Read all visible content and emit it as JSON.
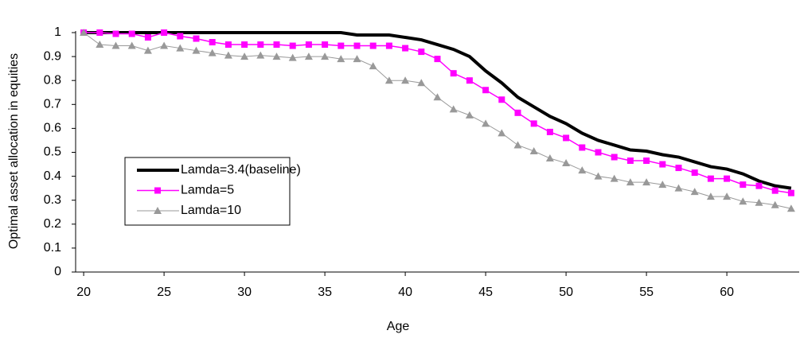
{
  "chart_data": {
    "type": "line",
    "x_label": "Age",
    "y_label": "Optimal asset allocation in equities",
    "x": [
      20,
      21,
      22,
      23,
      24,
      25,
      26,
      27,
      28,
      29,
      30,
      31,
      32,
      33,
      34,
      35,
      36,
      37,
      38,
      39,
      40,
      41,
      42,
      43,
      44,
      45,
      46,
      47,
      48,
      49,
      50,
      51,
      52,
      53,
      54,
      55,
      56,
      57,
      58,
      59,
      60,
      61,
      62,
      63,
      64
    ],
    "xlim": [
      19.5,
      64.5
    ],
    "xticks": [
      20,
      25,
      30,
      35,
      40,
      45,
      50,
      55,
      60
    ],
    "ylim": [
      0,
      1
    ],
    "yticks": [
      0,
      0.1,
      0.2,
      0.3,
      0.4,
      0.5,
      0.6,
      0.7,
      0.8,
      0.9,
      1
    ],
    "legend": "left",
    "series": [
      {
        "name": "Lamda=3.4(baseline)",
        "color": "#000000",
        "marker": "none",
        "line_width": 4,
        "values": [
          1,
          1,
          1,
          1,
          1,
          1,
          1,
          1,
          1,
          1,
          1,
          1,
          1,
          1,
          1,
          1,
          1,
          0.99,
          0.99,
          0.99,
          0.98,
          0.97,
          0.95,
          0.93,
          0.9,
          0.84,
          0.79,
          0.73,
          0.69,
          0.65,
          0.62,
          0.58,
          0.55,
          0.53,
          0.51,
          0.505,
          0.49,
          0.48,
          0.46,
          0.44,
          0.43,
          0.41,
          0.38,
          0.36,
          0.35
        ]
      },
      {
        "name": "Lamda=5",
        "color": "#ff00ff",
        "marker": "square",
        "line_width": 1.5,
        "values": [
          1,
          1,
          0.995,
          0.995,
          0.98,
          1,
          0.985,
          0.975,
          0.96,
          0.95,
          0.95,
          0.95,
          0.95,
          0.945,
          0.95,
          0.95,
          0.945,
          0.945,
          0.945,
          0.945,
          0.935,
          0.92,
          0.89,
          0.83,
          0.8,
          0.76,
          0.72,
          0.665,
          0.62,
          0.585,
          0.56,
          0.52,
          0.5,
          0.48,
          0.465,
          0.465,
          0.45,
          0.435,
          0.415,
          0.39,
          0.39,
          0.365,
          0.36,
          0.34,
          0.33
        ]
      },
      {
        "name": "Lamda=10",
        "color": "#999999",
        "marker": "triangle",
        "line_width": 1,
        "values": [
          1,
          0.95,
          0.945,
          0.945,
          0.925,
          0.945,
          0.935,
          0.925,
          0.915,
          0.905,
          0.9,
          0.905,
          0.9,
          0.895,
          0.9,
          0.9,
          0.89,
          0.89,
          0.86,
          0.8,
          0.8,
          0.79,
          0.73,
          0.68,
          0.655,
          0.62,
          0.58,
          0.53,
          0.505,
          0.475,
          0.455,
          0.425,
          0.4,
          0.39,
          0.375,
          0.375,
          0.365,
          0.35,
          0.335,
          0.315,
          0.315,
          0.295,
          0.29,
          0.28,
          0.265
        ]
      }
    ]
  }
}
